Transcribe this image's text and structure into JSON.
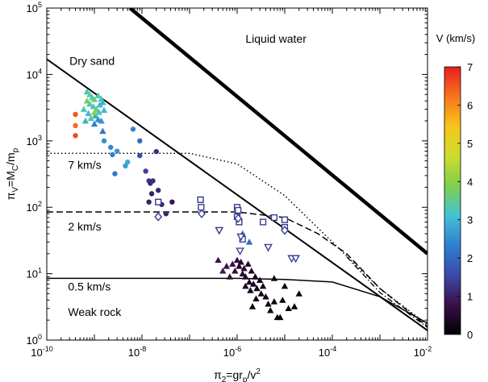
{
  "chart_data": {
    "type": "scatter",
    "xlabel_main": "π",
    "xlabel_sub": "2",
    "xlabel_rest": "=gr",
    "xlabel_sub2": "p",
    "xlabel_tail": "/v",
    "xlabel_sup": "2",
    "ylabel_main": "π",
    "ylabel_sub": "V",
    "ylabel_rest": "=M",
    "ylabel_sub2": "C",
    "ylabel_tail": "/m",
    "ylabel_sub3": "p",
    "x_scale": "log",
    "y_scale": "log",
    "xlim": [
      1e-10,
      0.01
    ],
    "ylim": [
      1,
      100000
    ],
    "x_ticks": [
      {
        "value": 1e-10,
        "base": "10",
        "exp": "-10"
      },
      {
        "value": 1e-08,
        "base": "10",
        "exp": "-8"
      },
      {
        "value": 1e-06,
        "base": "10",
        "exp": "-6"
      },
      {
        "value": 0.0001,
        "base": "10",
        "exp": "-4"
      },
      {
        "value": 0.01,
        "base": "10",
        "exp": "-2"
      }
    ],
    "y_ticks": [
      {
        "value": 1,
        "base": "10",
        "exp": "0"
      },
      {
        "value": 10,
        "base": "10",
        "exp": "1"
      },
      {
        "value": 100,
        "base": "10",
        "exp": "2"
      },
      {
        "value": 1000,
        "base": "10",
        "exp": "3"
      },
      {
        "value": 10000,
        "base": "10",
        "exp": "4"
      },
      {
        "value": 100000,
        "base": "10",
        "exp": "5"
      }
    ],
    "annotations": [
      {
        "text": "Dry sand",
        "x": 3e-10,
        "y": 14000
      },
      {
        "text": "Liquid water",
        "x": 1.5e-06,
        "y": 30000
      },
      {
        "text": "7 km/s",
        "x": 2.8e-10,
        "y": 380
      },
      {
        "text": "2 km/s",
        "x": 2.8e-10,
        "y": 45
      },
      {
        "text": "0.5 km/s",
        "x": 2.8e-10,
        "y": 5.6
      },
      {
        "text": "Weak rock",
        "x": 2.8e-10,
        "y": 2.3
      }
    ],
    "colorbar": {
      "title": "V (km/s)",
      "min": 0,
      "max": 7,
      "ticks": [
        "0",
        "1",
        "2",
        "3",
        "4",
        "5",
        "6",
        "7"
      ],
      "colormap": [
        "#000000",
        "#3a0f4a",
        "#3b4aa8",
        "#2f7fd0",
        "#43c3d2",
        "#7fcf4e",
        "#cddc2d",
        "#f7c51c",
        "#f6761d",
        "#e81e1e"
      ]
    },
    "lines": [
      {
        "style": "solid",
        "width": 4.5,
        "points": [
          [
            5.6e-09,
            100000
          ],
          [
            0.01,
            20
          ]
        ]
      },
      {
        "style": "solid",
        "width": 2,
        "points": [
          [
            1e-10,
            17000
          ],
          [
            0.01,
            1.4
          ]
        ]
      },
      {
        "style": "dotted",
        "width": 1.5,
        "points": [
          [
            1e-10,
            650
          ],
          [
            1e-07,
            650
          ],
          [
            1e-06,
            450
          ],
          [
            1e-05,
            150
          ],
          [
            0.0001,
            30
          ],
          [
            0.001,
            6
          ],
          [
            0.01,
            1.7
          ]
        ]
      },
      {
        "style": "dashed",
        "width": 1.5,
        "points": [
          [
            1e-10,
            85
          ],
          [
            1e-06,
            85
          ],
          [
            1e-05,
            70
          ],
          [
            5e-05,
            40
          ],
          [
            0.0002,
            20
          ],
          [
            0.001,
            6
          ],
          [
            0.01,
            1.6
          ]
        ]
      },
      {
        "style": "solid",
        "width": 1.5,
        "points": [
          [
            1e-10,
            8.5
          ],
          [
            1e-06,
            8.5
          ],
          [
            1e-05,
            8.2
          ],
          [
            0.0001,
            7.5
          ],
          [
            0.001,
            4.5
          ],
          [
            0.01,
            1.8
          ]
        ]
      }
    ],
    "series": [
      {
        "marker": "triangle",
        "points": [
          [
            7e-10,
            5500,
            3.2
          ],
          [
            8e-10,
            5000,
            3.5
          ],
          [
            9e-10,
            4500,
            3.3
          ],
          [
            1e-09,
            4200,
            3.6
          ],
          [
            1.2e-09,
            4800,
            3.2
          ],
          [
            1.4e-09,
            4300,
            3.4
          ],
          [
            7e-10,
            4000,
            3.8
          ],
          [
            8e-10,
            3600,
            3.4
          ],
          [
            9.5e-10,
            3300,
            3.2
          ],
          [
            1.1e-09,
            3000,
            3.7
          ],
          [
            1.3e-09,
            3500,
            3.0
          ],
          [
            6e-10,
            3000,
            3.3
          ],
          [
            7.5e-10,
            2600,
            3.0
          ],
          [
            1.05e-09,
            2400,
            2.8
          ],
          [
            1.25e-09,
            2700,
            3.1
          ],
          [
            1.5e-09,
            3800,
            2.9
          ],
          [
            1.6e-09,
            2900,
            3.0
          ],
          [
            8.5e-10,
            2200,
            3.4
          ],
          [
            1.2e-09,
            2100,
            2.5
          ],
          [
            1e-09,
            2700,
            4.0
          ],
          [
            6.5e-10,
            2000,
            2.9
          ],
          [
            1.4e-09,
            2000,
            2.6
          ],
          [
            1e-09,
            1800,
            2.3
          ],
          [
            1.5e-09,
            1400,
            2.2
          ],
          [
            1.3e-06,
            40,
            1.9
          ],
          [
            1.8e-06,
            30,
            2.0
          ],
          [
            4e-07,
            16,
            0.8
          ],
          [
            5e-07,
            11,
            0.9
          ],
          [
            6e-07,
            13,
            0.8
          ],
          [
            7e-07,
            9,
            0.7
          ],
          [
            8e-07,
            14,
            0.8
          ],
          [
            9e-07,
            11,
            0.6
          ],
          [
            1e-06,
            16,
            0.7
          ],
          [
            1.1e-06,
            13,
            0.5
          ],
          [
            1.2e-06,
            15,
            0.6
          ],
          [
            1.3e-06,
            10,
            0.5
          ],
          [
            1.4e-06,
            12,
            0.6
          ],
          [
            1.5e-06,
            9,
            0.4
          ],
          [
            1.7e-06,
            14,
            0.5
          ],
          [
            1.8e-06,
            7.5,
            0.4
          ],
          [
            2e-06,
            11,
            0.4
          ],
          [
            2.2e-06,
            7,
            0.3
          ],
          [
            2.4e-06,
            9,
            0.3
          ],
          [
            2.6e-06,
            6,
            0.3
          ],
          [
            3e-06,
            8,
            0.3
          ],
          [
            3.2e-06,
            5,
            0.2
          ],
          [
            3.5e-06,
            6.5,
            0.3
          ],
          [
            4e-06,
            4.5,
            0.2
          ],
          [
            4.5e-06,
            3.5,
            0.2
          ],
          [
            5e-06,
            2.8,
            0.2
          ],
          [
            6e-06,
            3.8,
            0.2
          ],
          [
            7e-06,
            2.2,
            0.1
          ],
          [
            8e-06,
            2.2,
            0.1
          ],
          [
            9e-06,
            4,
            0.1
          ],
          [
            1e-05,
            6.5,
            0.2
          ],
          [
            1.2e-05,
            3,
            0.1
          ],
          [
            1.6e-05,
            3.2,
            0.1
          ],
          [
            2e-05,
            5,
            0.2
          ],
          [
            2.5e-06,
            4.2,
            0.2
          ],
          [
            1.9e-06,
            5.6,
            0.3
          ],
          [
            1.5e-06,
            6.5,
            0.4
          ],
          [
            2.1e-06,
            3.2,
            0.2
          ],
          [
            6e-06,
            8.5,
            0.3
          ]
        ]
      },
      {
        "marker": "circle",
        "points": [
          [
            4e-10,
            2500,
            6.5
          ],
          [
            4e-10,
            1700,
            6.3
          ],
          [
            4e-10,
            1200,
            6.6
          ],
          [
            1.6e-09,
            1000,
            2.5
          ],
          [
            2.2e-09,
            800,
            2.4
          ],
          [
            3e-09,
            700,
            2.6
          ],
          [
            2.4e-09,
            620,
            2.3
          ],
          [
            2.7e-09,
            320,
            2.2
          ],
          [
            5e-09,
            480,
            2.9
          ],
          [
            4.5e-09,
            420,
            2.7
          ],
          [
            6.5e-09,
            1500,
            2.4
          ],
          [
            9e-09,
            1000,
            2.0
          ],
          [
            9e-09,
            600,
            1.6
          ],
          [
            1.2e-08,
            350,
            1.4
          ],
          [
            1.4e-08,
            250,
            1.3
          ],
          [
            1.5e-08,
            230,
            1.1
          ],
          [
            1.7e-08,
            250,
            1.2
          ],
          [
            1.6e-08,
            160,
            1.0
          ],
          [
            2.2e-08,
            180,
            1.1
          ],
          [
            2e-08,
            690,
            1.2
          ],
          [
            2.6e-08,
            110,
            1.1
          ],
          [
            3.2e-08,
            80,
            1.1
          ],
          [
            4.3e-08,
            120,
            0.8
          ],
          [
            1.4e-08,
            120,
            1.0
          ]
        ]
      },
      {
        "marker": "square",
        "points": [
          [
            2.2e-08,
            120,
            1.3
          ],
          [
            1.7e-07,
            130,
            1.3
          ],
          [
            1.75e-07,
            100,
            1.4
          ],
          [
            1e-06,
            100,
            1.3
          ],
          [
            1.05e-06,
            90,
            1.4
          ],
          [
            1e-06,
            72,
            1.3
          ],
          [
            1.1e-06,
            60,
            1.2
          ],
          [
            3.5e-06,
            60,
            1.4
          ],
          [
            6e-06,
            70,
            1.4
          ],
          [
            1e-05,
            65,
            1.3
          ],
          [
            1e-05,
            50,
            1.3
          ],
          [
            1.3e-06,
            33,
            1.5
          ]
        ]
      },
      {
        "marker": "diamond",
        "points": [
          [
            2.2e-08,
            72,
            1.3
          ],
          [
            1.8e-07,
            80,
            1.4
          ],
          [
            1.05e-06,
            68,
            1.4
          ],
          [
            1e-05,
            45,
            1.4
          ]
        ]
      },
      {
        "marker": "triangle-down",
        "points": [
          [
            4.2e-07,
            45,
            1.3
          ],
          [
            1.2e-06,
            36,
            1.4
          ],
          [
            1.15e-06,
            22,
            1.5
          ],
          [
            4.5e-06,
            25,
            1.4
          ],
          [
            1.4e-05,
            17,
            1.5
          ],
          [
            1.7e-05,
            17,
            1.4
          ]
        ]
      }
    ]
  }
}
